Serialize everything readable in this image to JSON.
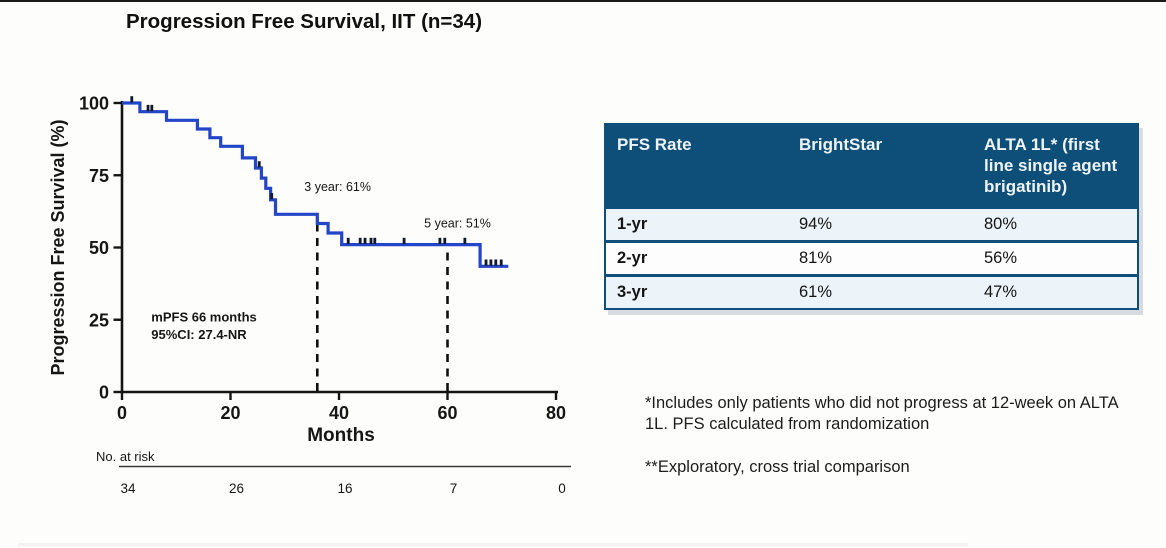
{
  "title": "Progression Free Survival, IIT (n=34)",
  "colors": {
    "curve": "#2346c8",
    "censor": "#10182b",
    "axis": "#141414",
    "table_header_bg": "#0e4f79",
    "table_row_alt_bg": "#ecf4fa",
    "table_border": "#0d4f7a"
  },
  "chart_data": {
    "type": "line",
    "subtype": "kaplan-meier-step",
    "title": "Progression Free Survival, IIT (n=34)",
    "xlabel": "Months",
    "ylabel": "Progression Free Survival (%)",
    "xlim": [
      0,
      80
    ],
    "ylim": [
      0,
      100
    ],
    "xticks": [
      0,
      20,
      40,
      60,
      80
    ],
    "yticks": [
      100,
      75,
      50,
      25,
      0
    ],
    "grid": false,
    "legend": "none",
    "series": [
      {
        "name": "PFS (IIT, n=34)",
        "steps": [
          [
            0,
            100
          ],
          [
            3.3,
            100
          ],
          [
            3.3,
            97
          ],
          [
            8.2,
            97
          ],
          [
            8.2,
            94
          ],
          [
            13.9,
            94
          ],
          [
            13.9,
            91
          ],
          [
            16.2,
            91
          ],
          [
            16.2,
            88
          ],
          [
            18.2,
            88
          ],
          [
            18.2,
            85
          ],
          [
            22.2,
            85
          ],
          [
            22.2,
            81
          ],
          [
            24.6,
            81
          ],
          [
            24.6,
            77.5
          ],
          [
            25.7,
            77.5
          ],
          [
            25.7,
            74
          ],
          [
            26.5,
            74
          ],
          [
            26.5,
            70.5
          ],
          [
            27.4,
            70.5
          ],
          [
            27.4,
            66.5
          ],
          [
            28.3,
            66.5
          ],
          [
            28.3,
            61.5
          ],
          [
            36,
            61.5
          ],
          [
            36,
            58.3
          ],
          [
            38,
            58.3
          ],
          [
            38,
            55
          ],
          [
            40.5,
            55
          ],
          [
            40.5,
            51
          ],
          [
            66,
            51
          ],
          [
            66,
            43.5
          ],
          [
            71.2,
            43.5
          ]
        ],
        "censors": [
          [
            1.8,
            100
          ],
          [
            4.8,
            97
          ],
          [
            5.5,
            97
          ],
          [
            25.3,
            77.5
          ],
          [
            27.6,
            66.5
          ],
          [
            41.7,
            51
          ],
          [
            43.9,
            51
          ],
          [
            44.8,
            51
          ],
          [
            45.9,
            51
          ],
          [
            46.6,
            51
          ],
          [
            52,
            51
          ],
          [
            58.6,
            51
          ],
          [
            59.5,
            51
          ],
          [
            63.2,
            51
          ],
          [
            67.1,
            43.5
          ],
          [
            68,
            43.5
          ],
          [
            68.9,
            43.5
          ],
          [
            69.9,
            43.5
          ]
        ]
      }
    ],
    "reference_lines": [
      {
        "x": 36,
        "top": 61.5,
        "label": "3-year"
      },
      {
        "x": 60,
        "top": 51,
        "label": "5-year"
      }
    ],
    "annotations": [
      {
        "text": "3 year: 61%",
        "month": 33.6,
        "pct": 69.6,
        "bold": false,
        "size": 12.5
      },
      {
        "text": "5 year: 51%",
        "month": 55.7,
        "pct": 57.0,
        "bold": false,
        "size": 12.5
      },
      {
        "text": "mPFS 66 months",
        "month": 5.4,
        "pct": 24.4,
        "bold": true,
        "size": 13
      },
      {
        "text": "95%CI: 27.4-NR",
        "month": 5.4,
        "pct": 18.4,
        "bold": true,
        "size": 13
      }
    ],
    "at_risk": {
      "label": "No. at risk",
      "months": [
        0,
        20,
        40,
        60,
        80
      ],
      "values": [
        "34",
        "26",
        "16",
        "7",
        "0"
      ]
    }
  },
  "table": {
    "headers": [
      "PFS Rate",
      "BrightStar",
      "ALTA 1L* (first line single agent brigatinib)"
    ],
    "rows": [
      [
        "1-yr",
        "94%",
        "80%"
      ],
      [
        "2-yr",
        "81%",
        "56%"
      ],
      [
        "3-yr",
        "61%",
        "47%"
      ]
    ]
  },
  "footnotes": [
    "*Includes only patients who did not progress at 12-week on ALTA 1L. PFS calculated from randomization",
    "**Exploratory, cross trial comparison"
  ]
}
